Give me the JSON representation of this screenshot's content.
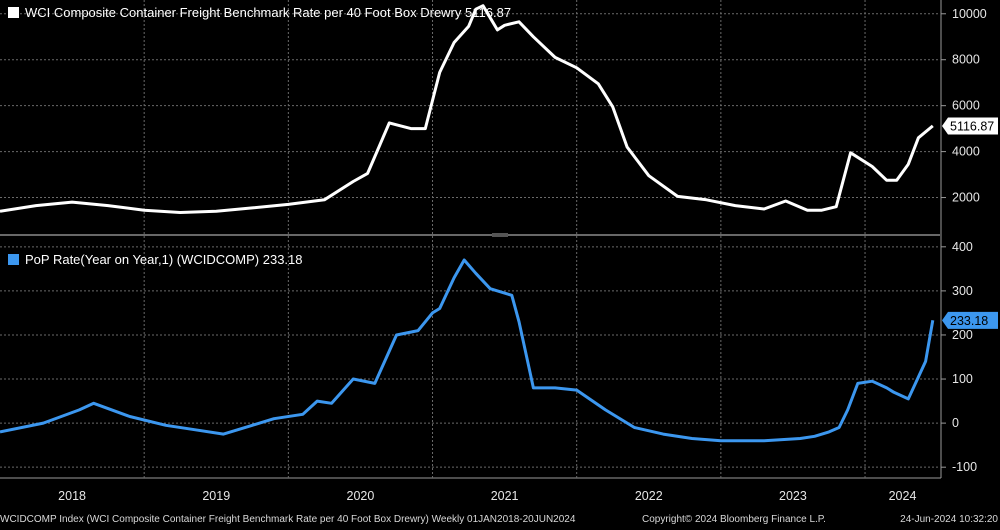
{
  "chart_data": [
    {
      "type": "line",
      "title": "WCI Composite Container Freight Benchmark Rate per 40 Foot Box Drewry",
      "legend_value": "5116.87",
      "last_value_label": "5116.87",
      "color": "#ffffff",
      "ylim": [
        500,
        10600
      ],
      "yticks": [
        2000,
        4000,
        6000,
        8000,
        10000
      ],
      "ytick_labels": [
        "2000",
        "4000",
        "6000",
        "8000",
        "10000"
      ],
      "grid": true,
      "legend_position": "top-left",
      "x": [
        2018.0,
        2018.25,
        2018.5,
        2018.75,
        2019.0,
        2019.25,
        2019.5,
        2019.75,
        2020.0,
        2020.25,
        2020.45,
        2020.55,
        2020.7,
        2020.85,
        2020.95,
        2021.05,
        2021.15,
        2021.25,
        2021.3,
        2021.35,
        2021.45,
        2021.5,
        2021.6,
        2021.7,
        2021.85,
        2022.0,
        2022.15,
        2022.25,
        2022.35,
        2022.5,
        2022.7,
        2022.9,
        2023.1,
        2023.3,
        2023.45,
        2023.6,
        2023.7,
        2023.8,
        2023.9,
        2024.05,
        2024.15,
        2024.22,
        2024.3,
        2024.37,
        2024.47
      ],
      "values": [
        1400,
        1650,
        1800,
        1650,
        1450,
        1350,
        1400,
        1550,
        1700,
        1900,
        2700,
        3050,
        5250,
        5000,
        5000,
        7450,
        8750,
        9450,
        10200,
        10350,
        9300,
        9500,
        9650,
        9000,
        8100,
        7650,
        6950,
        5950,
        4200,
        2950,
        2050,
        1900,
        1650,
        1500,
        1850,
        1450,
        1450,
        1600,
        3950,
        3350,
        2750,
        2750,
        3450,
        4600,
        5116.87
      ]
    },
    {
      "type": "line",
      "title": "PoP Rate(Year on Year,1) (WCIDCOMP)",
      "legend_value": "233.18",
      "last_value_label": "233.18",
      "color": "#3c97ef",
      "ylim": [
        -120,
        420
      ],
      "yticks": [
        -100,
        0,
        100,
        200,
        300,
        400
      ],
      "ytick_labels": [
        "-100",
        "0",
        "100",
        "200",
        "300",
        "400"
      ],
      "grid": true,
      "legend_position": "top-left",
      "x": [
        2018.0,
        2018.3,
        2018.55,
        2018.65,
        2018.9,
        2019.15,
        2019.35,
        2019.55,
        2019.75,
        2019.9,
        2020.1,
        2020.2,
        2020.3,
        2020.45,
        2020.6,
        2020.75,
        2020.9,
        2021.0,
        2021.05,
        2021.15,
        2021.22,
        2021.3,
        2021.4,
        2021.55,
        2021.6,
        2021.7,
        2021.85,
        2022.0,
        2022.2,
        2022.4,
        2022.6,
        2022.8,
        2023.0,
        2023.3,
        2023.55,
        2023.65,
        2023.75,
        2023.82,
        2023.88,
        2023.95,
        2024.05,
        2024.15,
        2024.2,
        2024.3,
        2024.42,
        2024.47
      ],
      "values": [
        -20,
        0,
        30,
        45,
        15,
        -5,
        -15,
        -25,
        -5,
        10,
        20,
        50,
        45,
        100,
        90,
        200,
        210,
        250,
        260,
        330,
        370,
        340,
        305,
        290,
        230,
        80,
        80,
        75,
        30,
        -10,
        -25,
        -35,
        -40,
        -40,
        -35,
        -30,
        -20,
        -10,
        30,
        90,
        95,
        80,
        70,
        55,
        140,
        233.18
      ]
    }
  ],
  "x_axis": {
    "range": [
      2018.0,
      2024.52
    ],
    "year_labels": [
      "2018",
      "2019",
      "2020",
      "2021",
      "2022",
      "2023",
      "2024"
    ]
  },
  "footer": {
    "left": "WCIDCOMP Index (WCI Composite Container Freight Benchmark Rate per 40 Foot Box Drewry)  Weekly 01JAN2018-20JUN2024",
    "center": "Copyright© 2024 Bloomberg Finance L.P.",
    "right": "24-Jun-2024 10:32:20"
  }
}
